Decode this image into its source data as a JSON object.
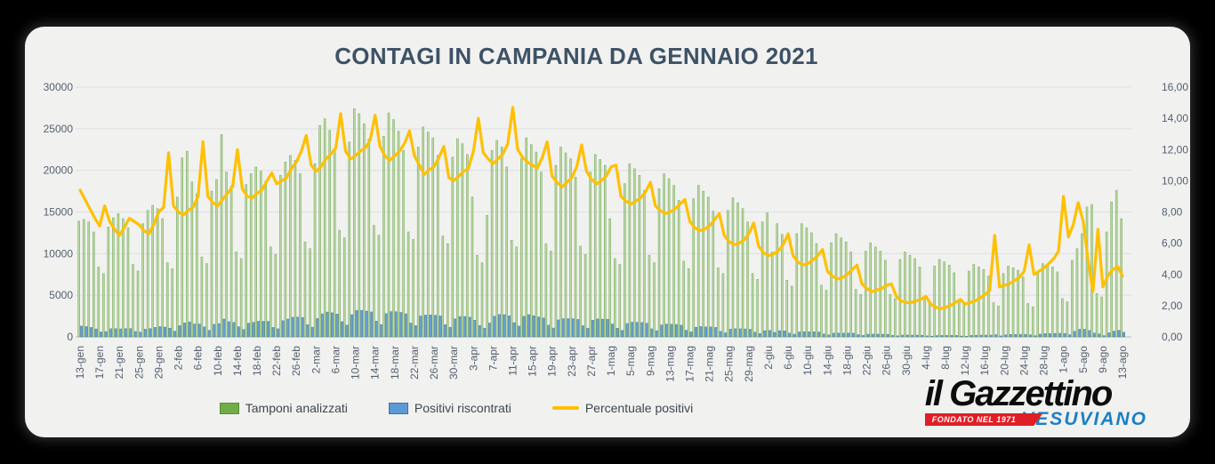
{
  "page": {
    "background": "#000000",
    "card_background": "#f1f1f0"
  },
  "footer_logo": {
    "brand": "il Gazzettino",
    "banner": "FONDATO NEL 1971",
    "sub": "VESUVIANO"
  },
  "chart_data": {
    "type": "combo-bar-line",
    "title": "CONTAGI IN CAMPANIA DA GENNAIO 2021",
    "title_color": "#3e5266",
    "grid": "horizontal",
    "legend_position": "bottom",
    "left_axis": {
      "min": 0,
      "max": 30000,
      "step": 5000,
      "tick_labels": [
        "0",
        "5000",
        "10000",
        "15000",
        "20000",
        "25000",
        "30000"
      ]
    },
    "right_axis": {
      "min": 0,
      "max": 16,
      "step": 2,
      "tick_labels": [
        "0,00",
        "2,00",
        "4,00",
        "6,00",
        "8,00",
        "10,00",
        "12,00",
        "14,00",
        "16,00"
      ]
    },
    "x_axis": {
      "tick_interval_days": 4,
      "tick_labels": [
        "13-gen",
        "17-gen",
        "21-gen",
        "25-gen",
        "29-gen",
        "2-feb",
        "6-feb",
        "10-feb",
        "14-feb",
        "18-feb",
        "22-feb",
        "26-feb",
        "2-mar",
        "6-mar",
        "10-mar",
        "14-mar",
        "18-mar",
        "22-mar",
        "26-mar",
        "30-mar",
        "3-apr",
        "7-apr",
        "11-apr",
        "15-apr",
        "19-apr",
        "23-apr",
        "27-apr",
        "1-mag",
        "5-mag",
        "9-mag",
        "13-mag",
        "17-mag",
        "21-mag",
        "25-mag",
        "29-mag",
        "2-giu",
        "6-giu",
        "10-giu",
        "14-giu",
        "18-giu",
        "22-giu",
        "26-giu",
        "30-giu",
        "4-lug",
        "8-lug",
        "12-lug",
        "16-lug",
        "20-lug",
        "24-lug",
        "28-lug",
        "1-ago",
        "5-ago",
        "9-ago",
        "13-ago"
      ]
    },
    "legend": [
      {
        "label": "Tamponi analizzati",
        "color": "#70AD47",
        "type": "bar"
      },
      {
        "label": "Positivi riscontrati",
        "color": "#5B9BD5",
        "type": "bar"
      },
      {
        "label": "Percentuale positivi",
        "color": "#FFC000",
        "type": "line"
      }
    ],
    "series": [
      {
        "name": "Tamponi analizzati",
        "axis": "left",
        "color_fill": "#b9d8a2",
        "color_edge": "#74a758",
        "values": [
          13900,
          14100,
          13800,
          12600,
          8400,
          7600,
          13200,
          14300,
          14800,
          14200,
          13100,
          8700,
          7900,
          13600,
          15200,
          15800,
          15400,
          14200,
          8900,
          8200,
          16800,
          21500,
          22300,
          18600,
          17200,
          9600,
          8800,
          17500,
          18900,
          24300,
          19800,
          18100,
          10200,
          9400,
          18300,
          19600,
          20400,
          19900,
          18700,
          10800,
          9900,
          19400,
          21000,
          21800,
          21200,
          19600,
          11400,
          10600,
          20800,
          25400,
          26200,
          24800,
          22600,
          12800,
          11900,
          23400,
          27400,
          26800,
          25600,
          23800,
          13400,
          12200,
          24100,
          26900,
          26100,
          24700,
          22400,
          12600,
          11700,
          22800,
          25200,
          24600,
          23900,
          21800,
          12100,
          11200,
          21600,
          23800,
          23200,
          21900,
          16800,
          9800,
          8900,
          14600,
          22400,
          23600,
          22800,
          20400,
          11600,
          10800,
          21400,
          23900,
          23100,
          22200,
          19800,
          11200,
          10300,
          20600,
          22800,
          22100,
          21400,
          19200,
          10900,
          9900,
          19800,
          21900,
          21300,
          20600,
          14200,
          9400,
          8700,
          18400,
          20800,
          20200,
          19400,
          17600,
          9800,
          8900,
          17800,
          19600,
          19000,
          18200,
          16400,
          9100,
          8200,
          16600,
          18200,
          17500,
          16800,
          15100,
          8300,
          7600,
          15200,
          16700,
          16100,
          15400,
          13800,
          7600,
          6900,
          13800,
          14900,
          10200,
          13600,
          12300,
          6800,
          6100,
          12400,
          13600,
          13100,
          12500,
          11200,
          6200,
          5600,
          11300,
          12400,
          11900,
          11400,
          10200,
          5700,
          5100,
          10300,
          11300,
          10800,
          10300,
          9200,
          5100,
          4600,
          9300,
          10200,
          9800,
          9400,
          8400,
          4700,
          4200,
          8500,
          9300,
          9000,
          8600,
          7700,
          4300,
          3900,
          7900,
          8700,
          8400,
          8100,
          7300,
          4100,
          3700,
          7600,
          8500,
          8300,
          8000,
          7200,
          4000,
          3600,
          7800,
          8800,
          8600,
          8400,
          7800,
          4600,
          4200,
          9200,
          10600,
          12400,
          15600,
          15900,
          5200,
          4800,
          12600,
          16200,
          17600,
          14200
        ]
      },
      {
        "name": "Positivi riscontrati",
        "axis": "left",
        "color_fill": "#67a1d4",
        "color_edge": "#41719c",
        "values": [
          1307,
          1241,
          1132,
          958,
          596,
          638,
          977,
          987,
          962,
          994,
          996,
          644,
          569,
          925,
          1003,
          1138,
          1232,
          1179,
          1050,
          689,
          1344,
          1677,
          1806,
          1544,
          1548,
          1200,
          792,
          1505,
          1588,
          2138,
          1822,
          1738,
          1224,
          893,
          1647,
          1744,
          1877,
          1871,
          1870,
          1134,
          970,
          1940,
          2142,
          2354,
          2374,
          2332,
          1471,
          1166,
          2205,
          2769,
          2987,
          2902,
          2735,
          1830,
          1416,
          2668,
          3178,
          3189,
          3098,
          2999,
          1903,
          1488,
          2796,
          3040,
          3028,
          2939,
          2778,
          1663,
          1357,
          2508,
          2621,
          2632,
          2605,
          2507,
          1476,
          1142,
          2160,
          2451,
          2459,
          2365,
          1999,
          1372,
          1050,
          1664,
          2486,
          2690,
          2668,
          2530,
          1705,
          1296,
          2461,
          2677,
          2541,
          2398,
          2277,
          1400,
          1061,
          2039,
          2189,
          2188,
          2183,
          2093,
          1341,
          1049,
          2000,
          2146,
          2130,
          2122,
          1548,
          1034,
          783,
          1601,
          1768,
          1757,
          1727,
          1637,
          970,
          748,
          1442,
          1548,
          1520,
          1492,
          1394,
          801,
          607,
          1162,
          1238,
          1208,
          1193,
          1133,
          656,
          494,
          927,
          985,
          966,
          955,
          911,
          555,
          400,
          745,
          775,
          541,
          748,
          726,
          449,
          317,
          595,
          626,
          616,
          613,
          582,
          347,
          235,
          441,
          459,
          452,
          456,
          439,
          262,
          173,
          319,
          328,
          324,
          319,
          304,
          173,
          120,
          214,
          224,
          216,
          216,
          202,
          122,
          88,
          162,
          167,
          171,
          172,
          169,
          103,
          82,
          174,
          200,
          210,
          219,
          219,
          267,
          118,
          251,
          289,
          299,
          304,
          302,
          236,
          144,
          328,
          387,
          404,
          420,
          429,
          414,
          269,
          662,
          912,
          918,
          764,
          461,
          359,
          154,
          491,
          697,
          792,
          554
        ]
      },
      {
        "name": "Percentuale positivi",
        "axis": "right",
        "color": "#FFC000",
        "values": [
          9.4,
          8.8,
          8.2,
          7.6,
          7.1,
          8.4,
          7.4,
          6.9,
          6.5,
          7.0,
          7.6,
          7.4,
          7.2,
          6.8,
          6.6,
          7.2,
          8.0,
          8.3,
          11.8,
          8.4,
          8.0,
          7.8,
          8.1,
          8.3,
          9.0,
          12.5,
          9.0,
          8.6,
          8.4,
          8.8,
          9.2,
          9.6,
          12.0,
          9.5,
          9.0,
          8.9,
          9.2,
          9.4,
          10.0,
          10.5,
          9.8,
          10.0,
          10.2,
          10.8,
          11.2,
          11.9,
          12.9,
          11.0,
          10.6,
          10.9,
          11.4,
          11.7,
          12.1,
          14.3,
          11.9,
          11.4,
          11.6,
          11.9,
          12.1,
          12.6,
          14.2,
          12.2,
          11.6,
          11.3,
          11.6,
          11.9,
          12.4,
          13.2,
          11.6,
          11.0,
          10.4,
          10.7,
          10.9,
          11.5,
          12.2,
          10.2,
          10.0,
          10.3,
          10.6,
          10.8,
          11.9,
          14.0,
          11.8,
          11.4,
          11.1,
          11.4,
          11.7,
          12.4,
          14.7,
          12.0,
          11.5,
          11.2,
          11.0,
          10.8,
          11.5,
          12.5,
          10.3,
          9.9,
          9.6,
          9.9,
          10.2,
          10.9,
          12.3,
          10.6,
          10.1,
          9.8,
          10.0,
          10.3,
          10.9,
          11.0,
          9.0,
          8.7,
          8.5,
          8.7,
          8.9,
          9.3,
          9.9,
          8.4,
          8.1,
          7.9,
          8.0,
          8.2,
          8.5,
          8.8,
          7.4,
          7.0,
          6.8,
          6.9,
          7.1,
          7.5,
          7.9,
          6.5,
          6.1,
          5.9,
          6.0,
          6.2,
          6.6,
          7.3,
          5.8,
          5.4,
          5.2,
          5.3,
          5.5,
          5.9,
          6.6,
          5.2,
          4.8,
          4.6,
          4.7,
          4.9,
          5.2,
          5.6,
          4.2,
          3.9,
          3.7,
          3.8,
          4.0,
          4.3,
          4.6,
          3.4,
          3.1,
          2.9,
          3.0,
          3.1,
          3.3,
          3.4,
          2.6,
          2.3,
          2.2,
          2.2,
          2.3,
          2.4,
          2.6,
          2.1,
          1.9,
          1.8,
          1.9,
          2.0,
          2.2,
          2.4,
          2.1,
          2.2,
          2.3,
          2.5,
          2.7,
          3.0,
          6.5,
          3.2,
          3.3,
          3.4,
          3.6,
          3.8,
          4.2,
          5.9,
          4.0,
          4.2,
          4.4,
          4.7,
          5.0,
          5.5,
          9.0,
          6.4,
          7.2,
          8.6,
          7.4,
          4.9,
          2.9,
          6.9,
          3.2,
          3.9,
          4.3,
          4.5,
          3.9
        ]
      }
    ]
  }
}
